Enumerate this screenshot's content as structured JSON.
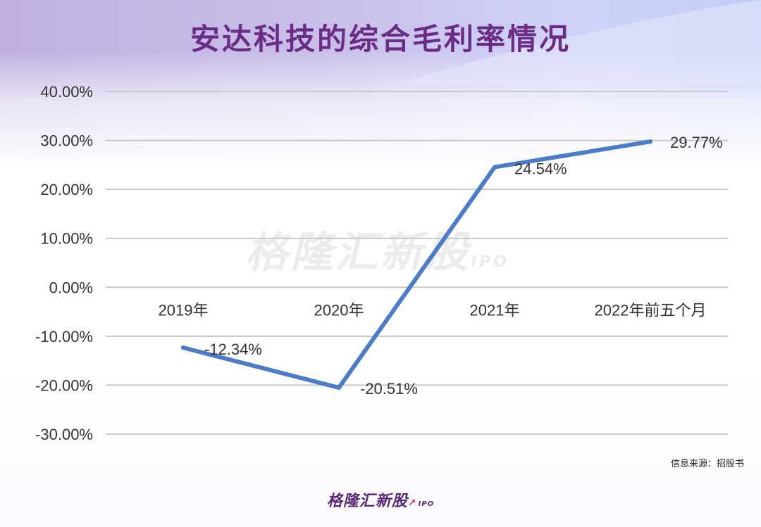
{
  "title": "安达科技的综合毛利率情况",
  "source_note": "信息来源：招股书",
  "brand": {
    "name": "格隆汇新股",
    "suffix": "IPO"
  },
  "watermark": {
    "name": "格隆汇新股",
    "suffix": "IPO"
  },
  "colors": {
    "line": "#4a7cc7",
    "title": "#6b2c86",
    "grid": "#c8c8c8",
    "text": "#333333"
  },
  "chart_data": {
    "type": "line",
    "categories": [
      "2019年",
      "2020年",
      "2021年",
      "2022年前五个月"
    ],
    "series": [
      {
        "values": [
          -12.34,
          -20.51,
          24.54,
          29.77
        ]
      }
    ],
    "data_labels": [
      "-12.34%",
      "-20.51%",
      "24.54%",
      "29.77%"
    ],
    "yticks": [
      "40.00%",
      "30.00%",
      "20.00%",
      "10.00%",
      "0.00%",
      "-10.00%",
      "-20.00%",
      "-30.00%"
    ],
    "ylim": [
      -30,
      40
    ],
    "grid": true,
    "legend": "none"
  }
}
